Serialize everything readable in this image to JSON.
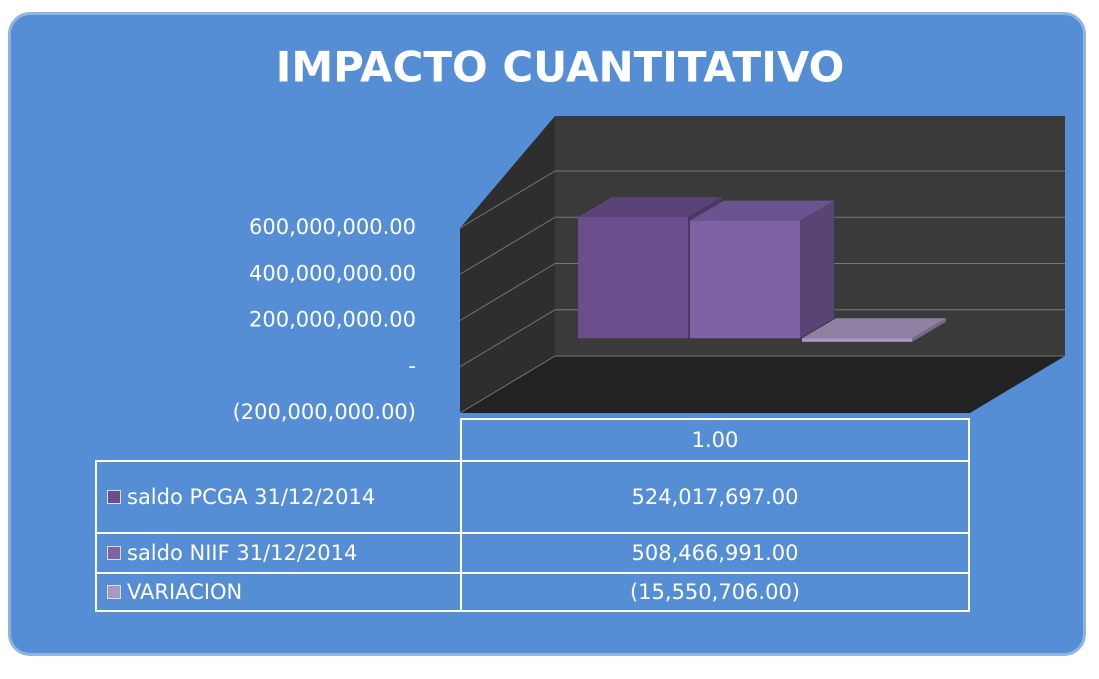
{
  "chart_data": {
    "type": "bar3d",
    "title": "IMPACTO CUANTITATIVO",
    "categories": [
      "1.00"
    ],
    "series": [
      {
        "name": "saldo PCGA 31/12/2014",
        "color": "#6a4f8c",
        "values": [
          524017697
        ],
        "value_labels": [
          "524,017,697.00"
        ]
      },
      {
        "name": "saldo NIIF 31/12/2014",
        "color": "#7e62a8",
        "values": [
          508466991
        ],
        "value_labels": [
          "508,466,991.00"
        ]
      },
      {
        "name": "VARIACION",
        "color": "#a898c0",
        "values": [
          -15550706
        ],
        "value_labels": [
          "(15,550,706.00)"
        ]
      }
    ],
    "ylim": [
      -200000000,
      600000000
    ],
    "yticks": [
      {
        "value": -200000000,
        "label": "(200,000,000.00)"
      },
      {
        "value": 0,
        "label": "-"
      },
      {
        "value": 200000000,
        "label": "200,000,000.00"
      },
      {
        "value": 400000000,
        "label": "400,000,000.00"
      },
      {
        "value": 600000000,
        "label": "600,000,000.00"
      }
    ],
    "grid": true
  }
}
